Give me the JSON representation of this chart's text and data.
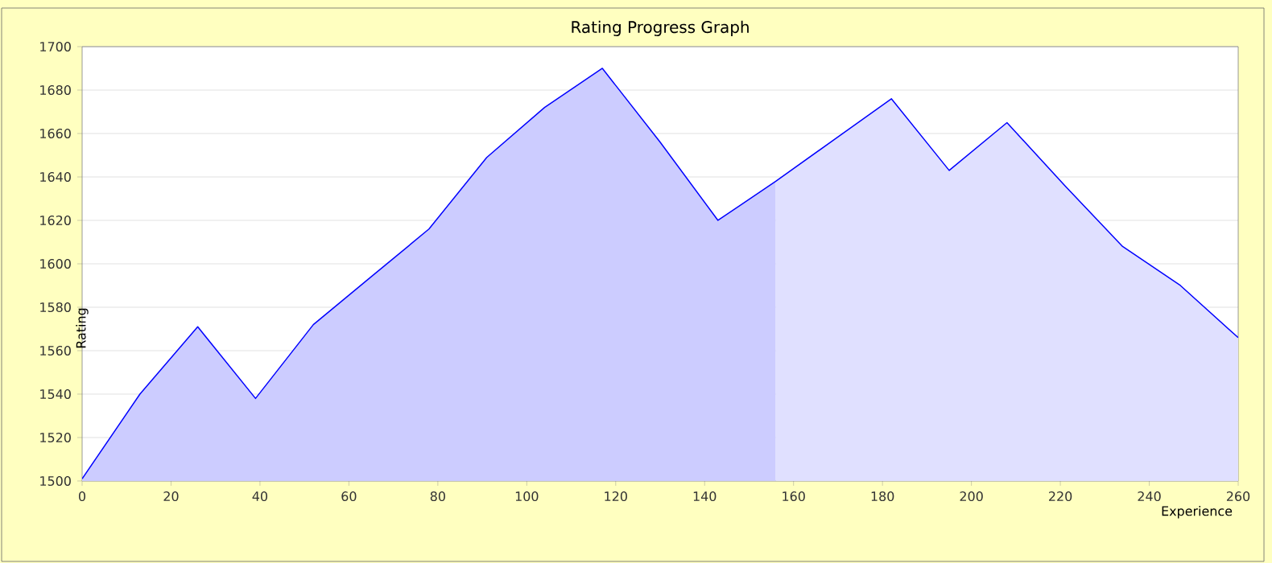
{
  "chart_data": {
    "type": "line",
    "title": "Rating Progress Graph",
    "xlabel": "Experience",
    "ylabel": "Rating",
    "series": [
      {
        "type": "area",
        "color": "#ccccff",
        "x": [
          0,
          13,
          26,
          39,
          52,
          65,
          78,
          91,
          104,
          117,
          130,
          143,
          156
        ],
        "values": [
          1501,
          1540,
          1571,
          1538,
          1572,
          1594,
          1616,
          1649,
          1672,
          1690,
          1656,
          1620,
          1638
        ]
      },
      {
        "type": "area",
        "color": "#e0e0ff",
        "x": [
          156,
          169,
          182,
          195,
          208,
          221,
          234,
          247,
          260
        ],
        "values": [
          1638,
          1657,
          1676,
          1643,
          1665,
          1636,
          1608,
          1590,
          1566
        ]
      },
      {
        "color": "#0000ff",
        "x": [
          0,
          13,
          26,
          39,
          52,
          65,
          78,
          91,
          104,
          117,
          130,
          143,
          156,
          169,
          182,
          195,
          208,
          221,
          234,
          247,
          260
        ],
        "values": [
          1501,
          1540,
          1571,
          1538,
          1572,
          1594,
          1616,
          1649,
          1672,
          1690,
          1656,
          1620,
          1638,
          1657,
          1676,
          1643,
          1665,
          1636,
          1608,
          1590,
          1566
        ]
      }
    ],
    "xlim": [
      0,
      260
    ],
    "ylim": [
      1500,
      1700
    ],
    "xticks": [
      0,
      20,
      40,
      60,
      80,
      100,
      120,
      140,
      160,
      180,
      200,
      220,
      240,
      260
    ],
    "yticks": [
      1500,
      1520,
      1540,
      1560,
      1580,
      1600,
      1620,
      1640,
      1660,
      1680,
      1700
    ],
    "grid": "y"
  }
}
